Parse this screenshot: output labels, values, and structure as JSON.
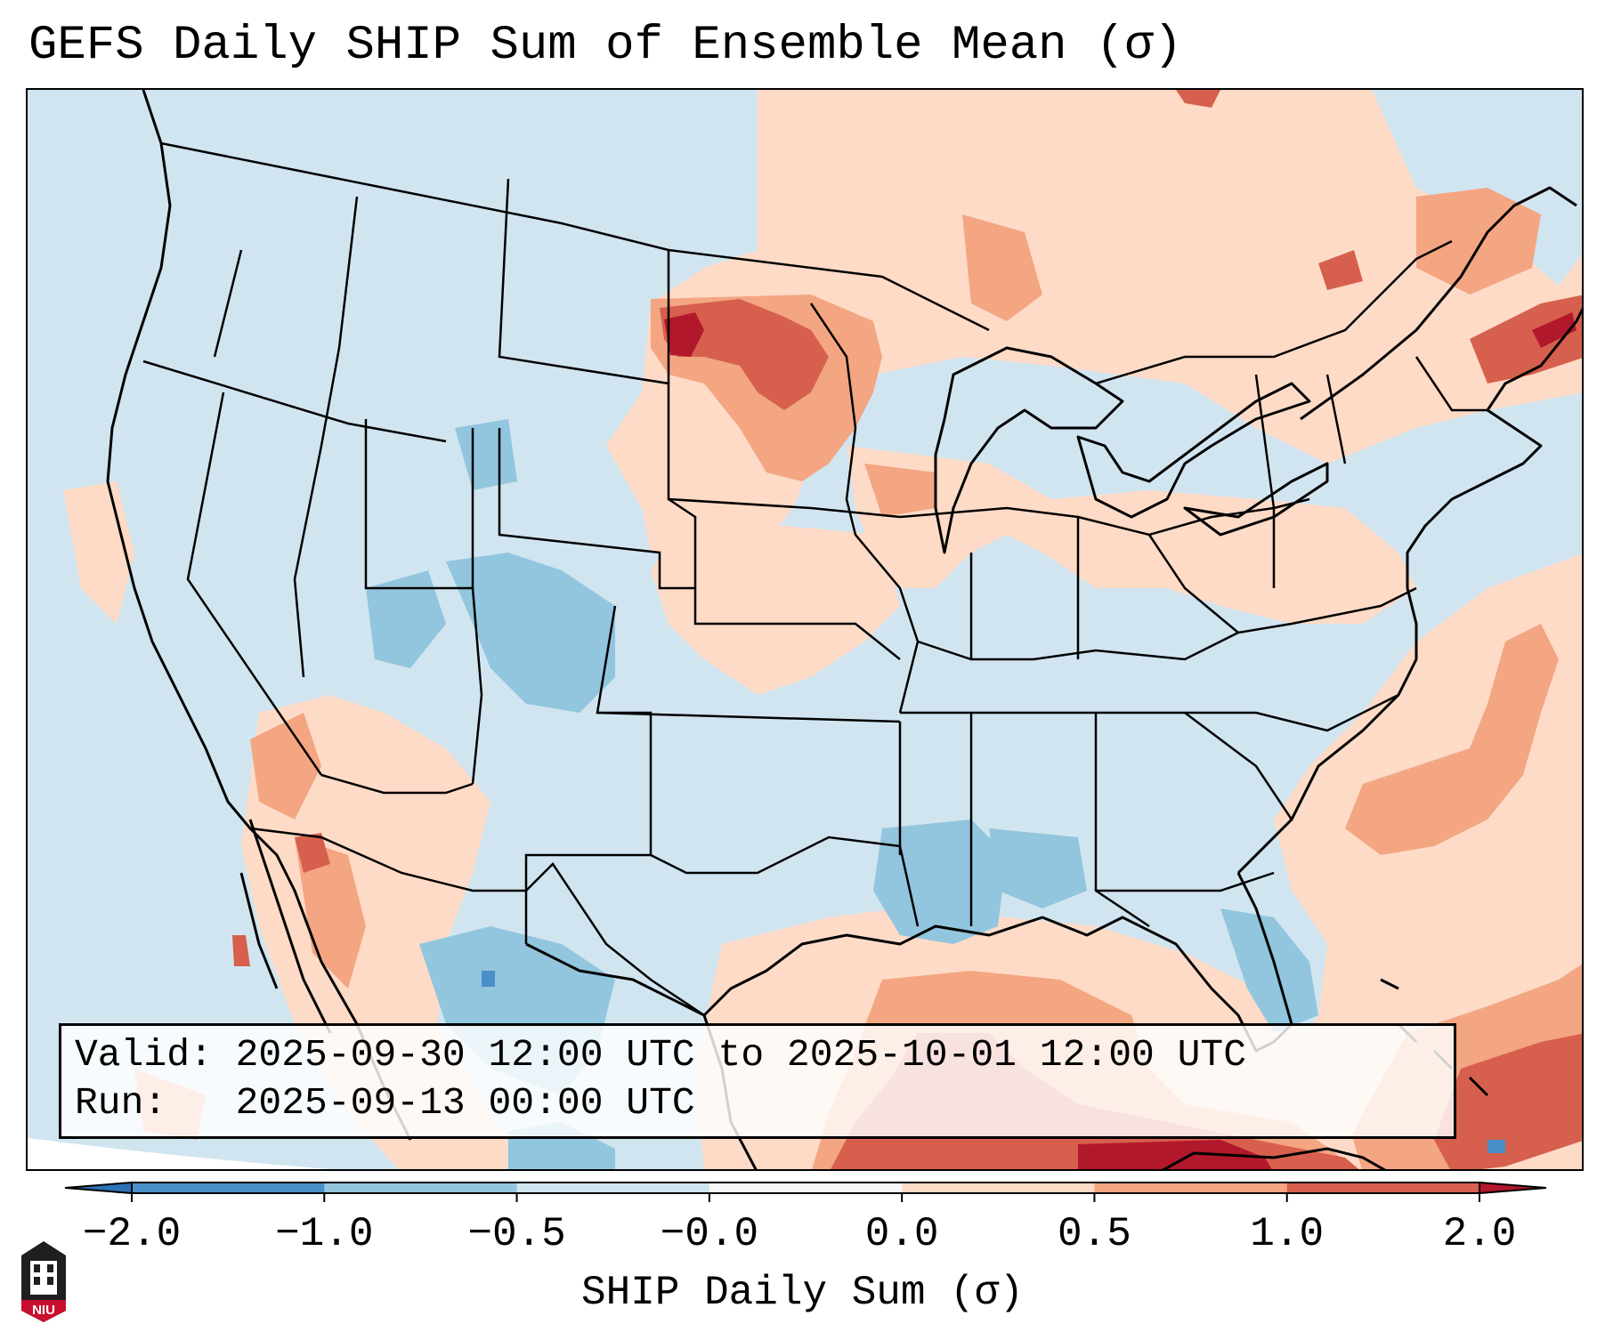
{
  "title": "GEFS Daily SHIP Sum of Ensemble Mean (σ)",
  "info": {
    "valid_line": "Valid: 2025-09-30 12:00 UTC to 2025-10-01 12:00 UTC",
    "run_line": "Run:   2025-09-13 00:00 UTC"
  },
  "colorbar": {
    "label": "SHIP Daily Sum (σ)",
    "tick_labels": [
      "−2.0",
      "−1.0",
      "−0.5",
      "−0.0",
      "0.0",
      "0.5",
      "1.0",
      "2.0"
    ],
    "bin_colors": [
      "#4a8fc7",
      "#92c5de",
      "#d1e5f0",
      "#f7f7f7",
      "#fddbc7",
      "#f4a582",
      "#d6604d"
    ],
    "under_color": "#2c73b5",
    "over_color": "#b2182b"
  },
  "logo": {
    "text": "NIU"
  }
}
